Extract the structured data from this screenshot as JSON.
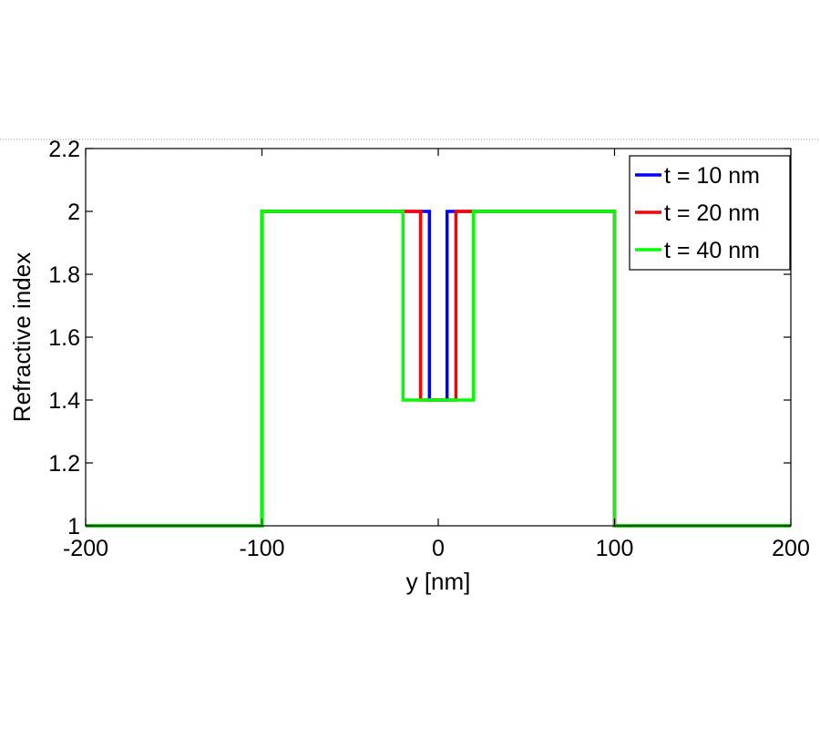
{
  "chart_data": {
    "type": "line",
    "xlabel": "y [nm]",
    "ylabel": "Refractive index",
    "xlim": [
      -200,
      200
    ],
    "ylim": [
      1,
      2.2
    ],
    "xticks": [
      -200,
      -100,
      0,
      100,
      200
    ],
    "yticks": [
      1,
      1.2,
      1.4,
      1.6,
      1.8,
      2,
      2.2
    ],
    "grid": false,
    "legend_position": "top-right",
    "series": [
      {
        "name": "t = 10 nm",
        "color": "#0000ff",
        "x": [
          -200,
          -100,
          -100,
          -5,
          -5,
          5,
          5,
          100,
          100,
          200
        ],
        "y": [
          1,
          1,
          2,
          2,
          1.4,
          1.4,
          2,
          2,
          1,
          1
        ]
      },
      {
        "name": "t = 20 nm",
        "color": "#ff0000",
        "x": [
          -200,
          -100,
          -100,
          -10,
          -10,
          10,
          10,
          100,
          100,
          200
        ],
        "y": [
          1,
          1,
          2,
          2,
          1.4,
          1.4,
          2,
          2,
          1,
          1
        ]
      },
      {
        "name": "t = 40 nm",
        "color": "#00ff00",
        "x": [
          -200,
          -100,
          -100,
          -20,
          -20,
          20,
          20,
          100,
          100,
          200
        ],
        "y": [
          1,
          1,
          2,
          2,
          1.4,
          1.4,
          2,
          2,
          1,
          1
        ]
      }
    ]
  }
}
